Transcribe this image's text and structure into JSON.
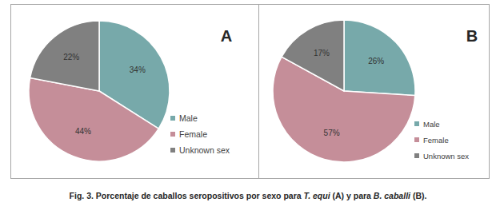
{
  "chart_data": [
    {
      "type": "pie",
      "title": "A",
      "categories": [
        "Male",
        "Female",
        "Unknown sex"
      ],
      "values": [
        34,
        44,
        22
      ],
      "value_labels": [
        "34%",
        "44%",
        "22%"
      ],
      "colors": [
        "#77a9aa",
        "#c58e99",
        "#808080"
      ],
      "data_labels": true,
      "legend": "right"
    },
    {
      "type": "pie",
      "title": "B",
      "categories": [
        "Male",
        "Female",
        "Unknown sex"
      ],
      "values": [
        26,
        57,
        17
      ],
      "value_labels": [
        "26%",
        "57%",
        "17%"
      ],
      "colors": [
        "#77a9aa",
        "#c58e99",
        "#808080"
      ],
      "data_labels": true,
      "legend": "right"
    }
  ],
  "caption": [
    "Fig. 3. Porcentaje de caballos seropositivos por sexo para ",
    "T. equi",
    " (A) y para ",
    "B. caballi",
    " (B)."
  ]
}
